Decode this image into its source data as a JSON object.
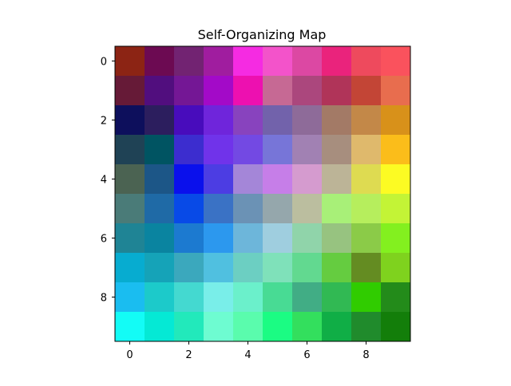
{
  "chart_data": {
    "type": "heatmap",
    "title": "Self-Organizing Map",
    "xlabel": "",
    "ylabel": "",
    "xlim": [
      -0.5,
      9.5
    ],
    "ylim": [
      9.5,
      -0.5
    ],
    "x_ticks": [
      0,
      2,
      4,
      6,
      8
    ],
    "y_ticks": [
      0,
      2,
      4,
      6,
      8
    ],
    "x_tick_labels": [
      "0",
      "2",
      "4",
      "6",
      "8"
    ],
    "y_tick_labels": [
      "0",
      "2",
      "4",
      "6",
      "8"
    ],
    "grid": false,
    "rows": 10,
    "cols": 10,
    "cells": [
      [
        "#8c2414",
        "#6c0a52",
        "#722372",
        "#a01d9f",
        "#f52be2",
        "#f353ca",
        "#dc48a3",
        "#ea237c",
        "#ee4a5d",
        "#fa525d"
      ],
      [
        "#661a37",
        "#510e7e",
        "#741795",
        "#a30ac8",
        "#ed10b0",
        "#c66994",
        "#ab477d",
        "#b03459",
        "#c34536",
        "#e86d4e"
      ],
      [
        "#0d0f5c",
        "#2c1e5e",
        "#480cbc",
        "#6f25db",
        "#8843be",
        "#7262ab",
        "#8e6b99",
        "#a37a66",
        "#c38848",
        "#d8911a"
      ],
      [
        "#1f4255",
        "#005462",
        "#3c2dcf",
        "#7033ea",
        "#7349e3",
        "#7775d8",
        "#a181b3",
        "#a78e7e",
        "#dfb96c",
        "#fbbd1a"
      ],
      [
        "#4b6352",
        "#1c5687",
        "#0a10ec",
        "#4c3de3",
        "#a486d8",
        "#c67ee8",
        "#d59bcf",
        "#bcb497",
        "#dedb51",
        "#fcfb23"
      ],
      [
        "#4a7b78",
        "#1f6aa6",
        "#084ae7",
        "#3a72c5",
        "#6b92b5",
        "#95a7ac",
        "#bbbe9f",
        "#a8f078",
        "#b6ee5d",
        "#c3f436"
      ],
      [
        "#1f8495",
        "#0a84a0",
        "#1c7ad0",
        "#2c98ee",
        "#6db6da",
        "#9fcedf",
        "#90d4aa",
        "#97c380",
        "#8bcb48",
        "#83f01f"
      ],
      [
        "#07acd0",
        "#15a3b8",
        "#3ba8bd",
        "#50c0e0",
        "#6ccfc2",
        "#7fe1ba",
        "#62d990",
        "#65cc40",
        "#648c22",
        "#7fd21e"
      ],
      [
        "#1abdf0",
        "#1ccaca",
        "#44d9d0",
        "#79eee9",
        "#6bf0cb",
        "#48db94",
        "#41ad85",
        "#31b953",
        "#30cc00",
        "#238b1a"
      ],
      [
        "#13fcf6",
        "#05e9d5",
        "#22e9bb",
        "#6efcd1",
        "#5afcad",
        "#1bfc83",
        "#33df5d",
        "#10ae46",
        "#208b2c",
        "#137e0a"
      ]
    ]
  }
}
